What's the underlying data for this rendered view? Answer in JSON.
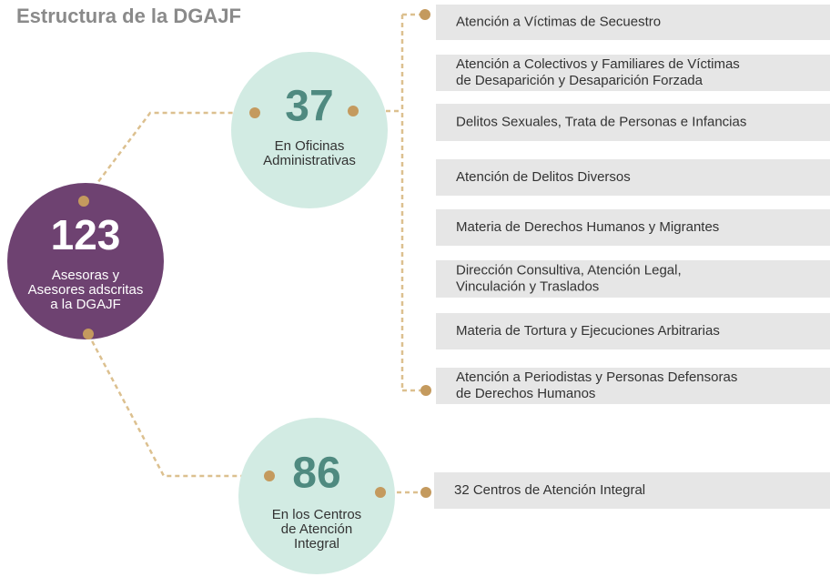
{
  "title": "Estructura de la DGAJF",
  "root": {
    "number": "123",
    "label": [
      "Asesoras y",
      "Asesores adscritas",
      "a la DGAJF"
    ]
  },
  "branches": [
    {
      "number": "37",
      "label": [
        "En Oficinas",
        "Administrativas"
      ],
      "items": [
        [
          "Atención a Víctimas de Secuestro"
        ],
        [
          "Atención a Colectivos y Familiares de Víctimas",
          "de Desaparición y Desaparición Forzada"
        ],
        [
          "Delitos Sexuales, Trata de Personas e Infancias"
        ],
        [
          "Atención de Delitos Diversos"
        ],
        [
          "Materia de Derechos Humanos y Migrantes"
        ],
        [
          "Dirección Consultiva, Atención Legal,",
          "Vinculación y Traslados"
        ],
        [
          "Materia de Tortura y Ejecuciones Arbitrarias"
        ],
        [
          "Atención a Periodistas y Personas Defensoras",
          "de Derechos Humanos"
        ]
      ]
    },
    {
      "number": "86",
      "label": [
        "En los Centros",
        "de Atención",
        "Integral"
      ],
      "items": [
        [
          "32 Centros de Atención Integral"
        ]
      ]
    }
  ]
}
